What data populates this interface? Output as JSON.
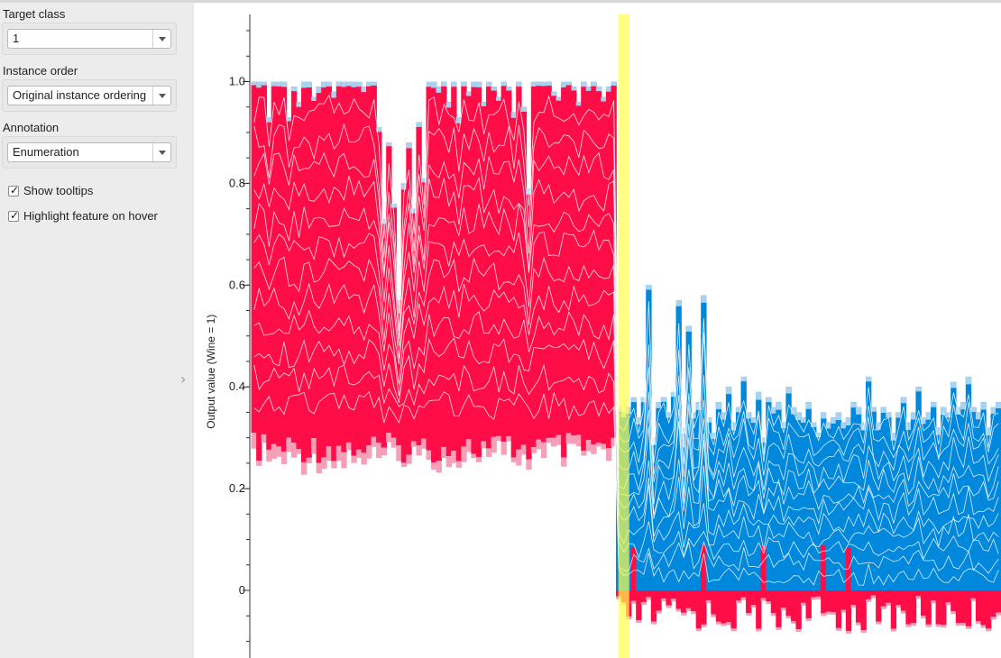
{
  "sidebar": {
    "target_class": {
      "label": "Target class",
      "value": "1"
    },
    "instance_order": {
      "label": "Instance order",
      "value": "Original instance ordering"
    },
    "annotation": {
      "label": "Annotation",
      "value": "Enumeration"
    },
    "show_tooltips": {
      "label": "Show tooltips",
      "checked": true
    },
    "highlight_feature": {
      "label": "Highlight feature on hover",
      "checked": true
    }
  },
  "colors": {
    "red": "#ff0d47",
    "blue": "#0088dd",
    "pink": "#f5a0b8",
    "light_blue": "#a8d4f2",
    "highlight": "#ffff4d"
  },
  "chart_data": {
    "type": "area",
    "ylabel": "Output value (Wine = 1)",
    "yticks": [
      "0",
      "0.2",
      "0.4",
      "0.6",
      "0.8",
      "1.0"
    ],
    "ytick_values": [
      0,
      0.2,
      0.4,
      0.6,
      0.8,
      1.0
    ],
    "ylim": [
      -0.13,
      1.13
    ],
    "n_instances": 150,
    "highlighted_instance": 74,
    "series": [
      {
        "name": "",
        "y_values": [
          1.0,
          1.0,
          1.0,
          0.93,
          1.0,
          1.0,
          1.0,
          0.93,
          0.99,
          0.96,
          1.0,
          1.0,
          0.97,
          0.99,
          1.0,
          1.0,
          0.98,
          1.0,
          1.0,
          1.0,
          1.0,
          1.0,
          0.99,
          1.0,
          1.0,
          0.91,
          0.73,
          0.88,
          0.76,
          0.58,
          0.8,
          0.88,
          0.75,
          0.92,
          0.81,
          1.0,
          1.0,
          0.99,
          1.0,
          0.96,
          1.0,
          0.93,
          1.0,
          0.98,
          1.0,
          1.0,
          0.96,
          1.0,
          0.99,
          0.97,
          1.0,
          0.99,
          0.94,
          1.0,
          0.95,
          0.79,
          1.0,
          1.0,
          1.0,
          1.0,
          0.98,
          0.97,
          1.0,
          1.0,
          0.99,
          0.96,
          1.0,
          0.99,
          1.0,
          0.99,
          0.97,
          0.99,
          1.0,
          0.36,
          0.35,
          0.36,
          0.38,
          0.34,
          0.38,
          0.6,
          0.3,
          0.37,
          0.38,
          0.35,
          0.39,
          0.57,
          0.32,
          0.52,
          0.35,
          0.37,
          0.58,
          0.34,
          0.31,
          0.37,
          0.35,
          0.4,
          0.33,
          0.36,
          0.42,
          0.35,
          0.34,
          0.39,
          0.3,
          0.38,
          0.36,
          0.37,
          0.33,
          0.4,
          0.36,
          0.35,
          0.34,
          0.37,
          0.33,
          0.31,
          0.35,
          0.33,
          0.34,
          0.35,
          0.33,
          0.34,
          0.37,
          0.36,
          0.33,
          0.42,
          0.36,
          0.33,
          0.36,
          0.35,
          0.31,
          0.35,
          0.38,
          0.33,
          0.35,
          0.4,
          0.34,
          0.35,
          0.37,
          0.32,
          0.36,
          0.35,
          0.41,
          0.36,
          0.37,
          0.42,
          0.36,
          0.35,
          0.37,
          0.32,
          0.36,
          0.37
        ]
      }
    ]
  }
}
